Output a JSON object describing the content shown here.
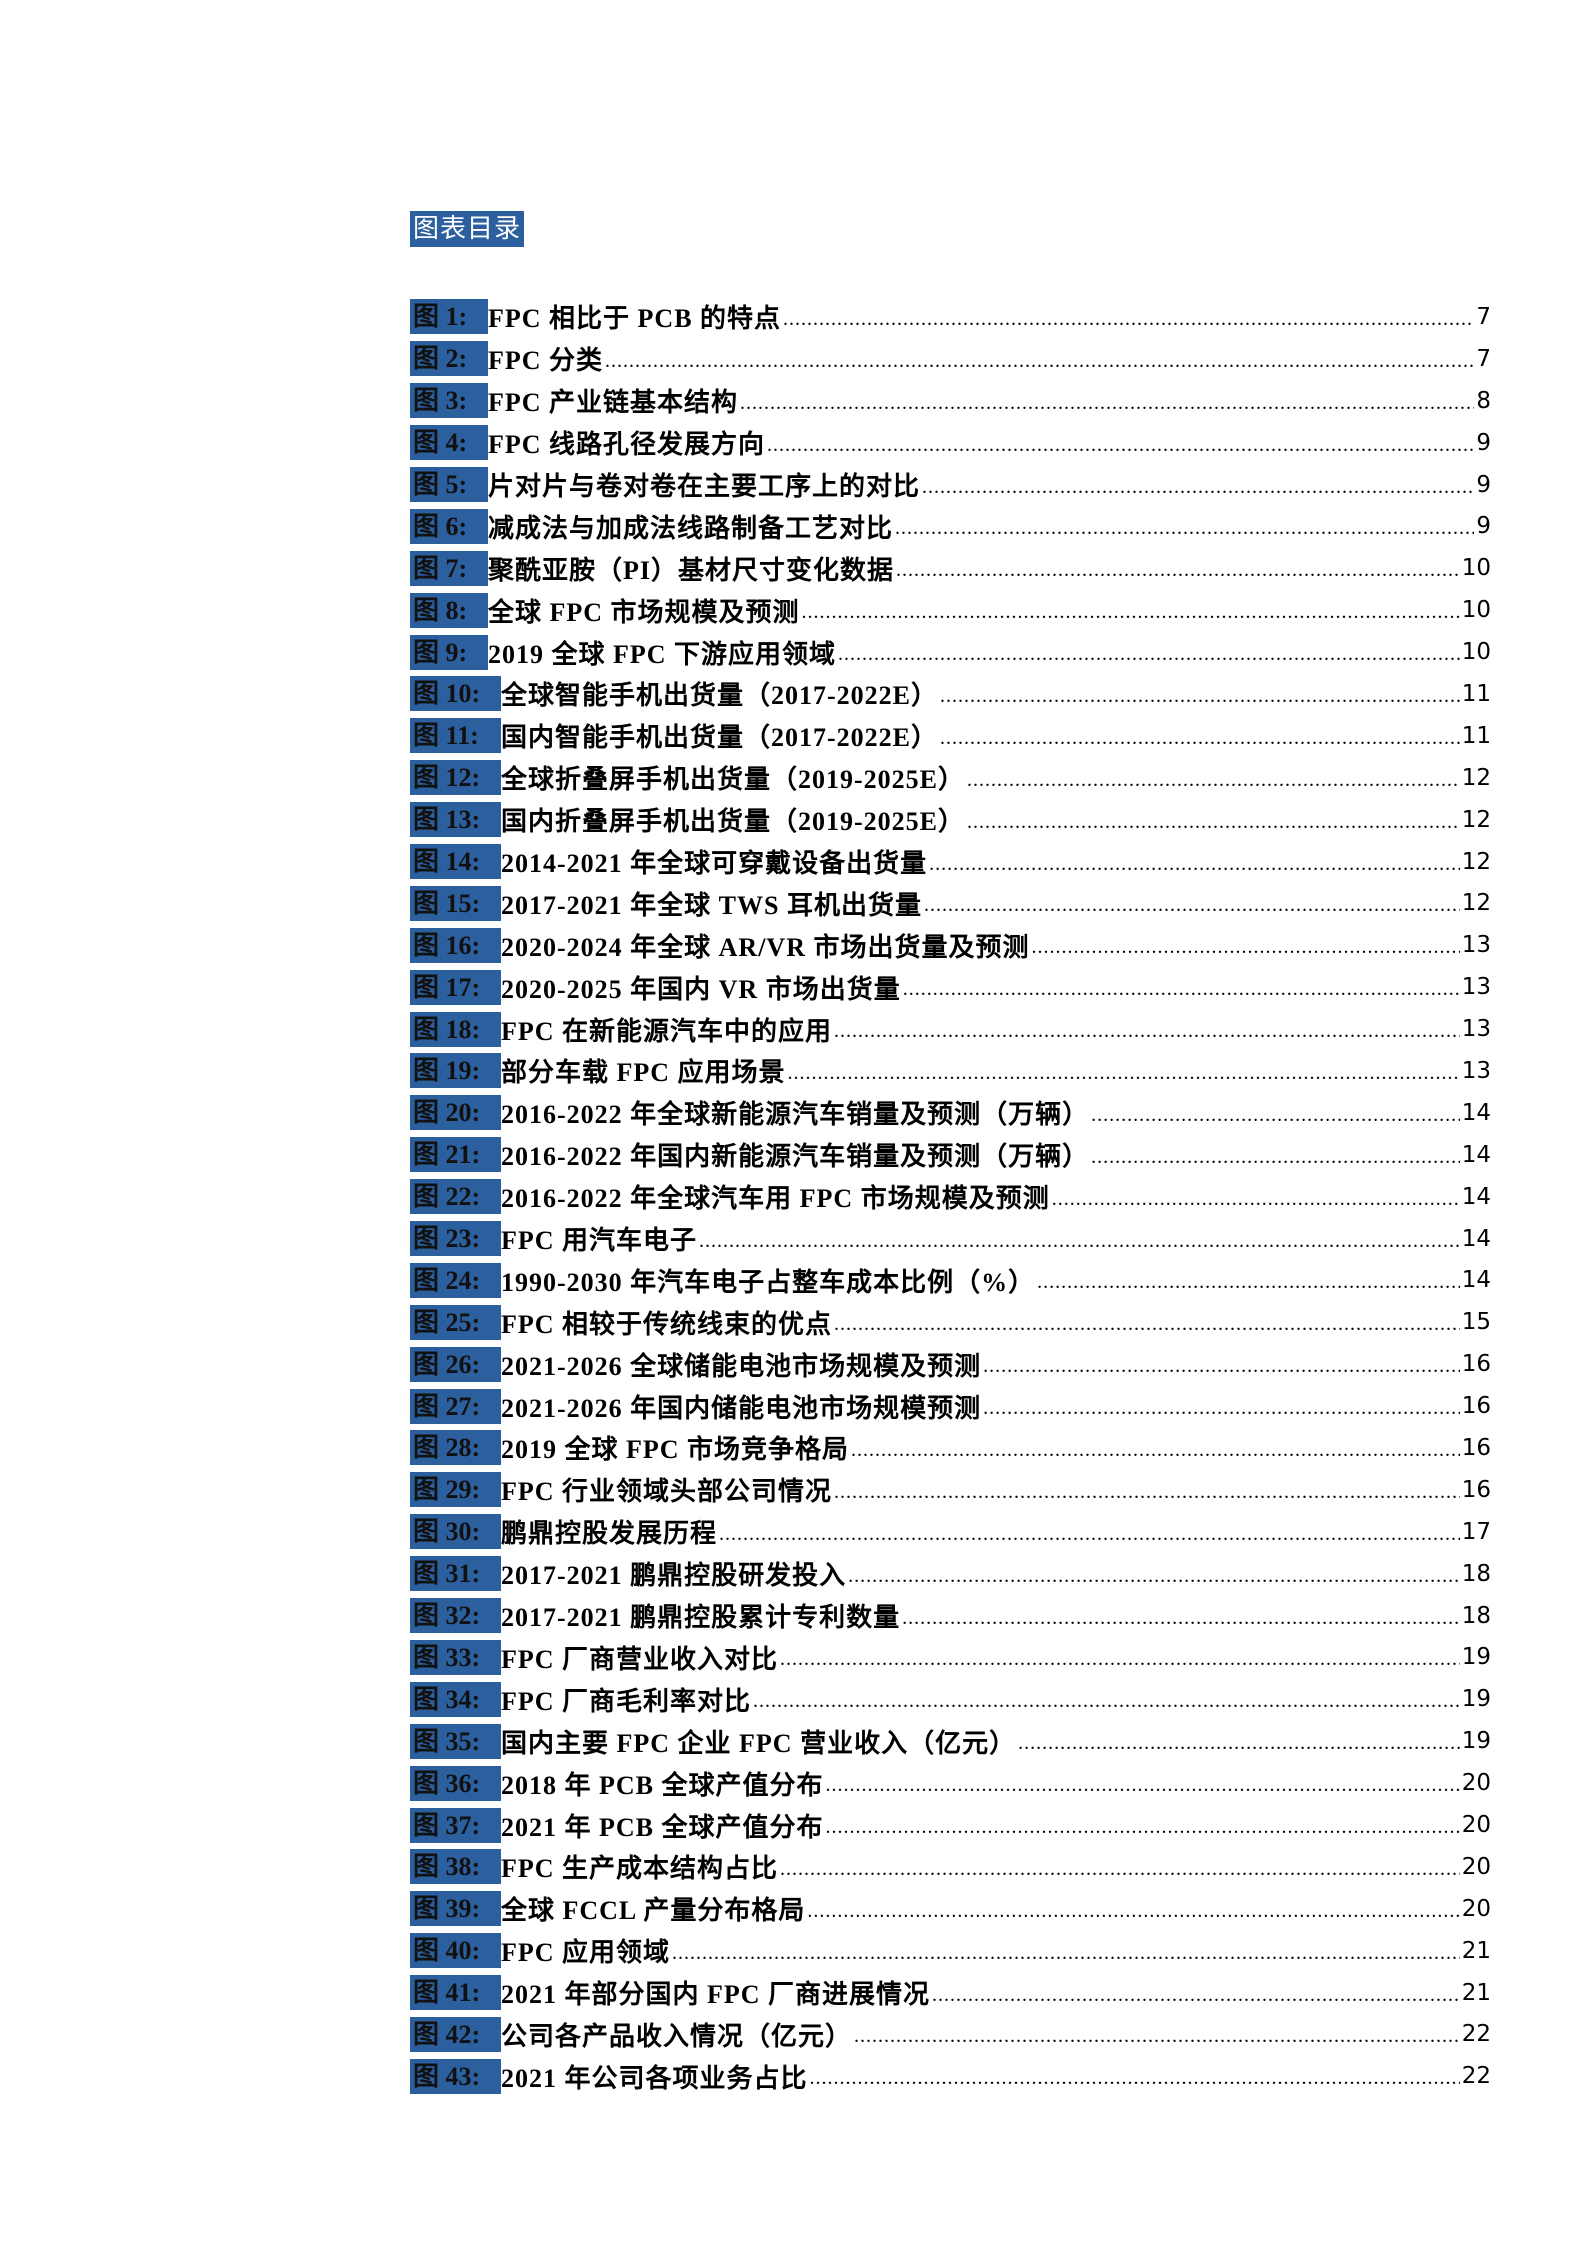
{
  "title": "图表目录",
  "leader": "....................................................................................................................................................................................................",
  "entries": [
    {
      "label": "图 1:",
      "text": "FPC 相比于 PCB 的特点",
      "page": "7"
    },
    {
      "label": "图 2:",
      "text": "FPC 分类",
      "page": "7"
    },
    {
      "label": "图 3:",
      "text": "FPC 产业链基本结构",
      "page": "8"
    },
    {
      "label": "图 4:",
      "text": "FPC 线路孔径发展方向",
      "page": "9"
    },
    {
      "label": "图 5:",
      "text": "片对片与卷对卷在主要工序上的对比",
      "page": "9"
    },
    {
      "label": "图 6:",
      "text": "减成法与加成法线路制备工艺对比",
      "page": "9"
    },
    {
      "label": "图 7:",
      "text": "聚酰亚胺（PI）基材尺寸变化数据",
      "page": "10"
    },
    {
      "label": "图 8:",
      "text": "全球 FPC 市场规模及预测",
      "page": "10"
    },
    {
      "label": "图 9:",
      "text": "2019 全球 FPC 下游应用领域",
      "page": "10"
    },
    {
      "label": "图 10:",
      "text": "全球智能手机出货量（2017-2022E）",
      "page": "11"
    },
    {
      "label": "图 11:",
      "text": "国内智能手机出货量（2017-2022E）",
      "page": "11"
    },
    {
      "label": "图 12:",
      "text": "全球折叠屏手机出货量（2019-2025E）",
      "page": "12"
    },
    {
      "label": "图 13:",
      "text": "国内折叠屏手机出货量（2019-2025E）",
      "page": "12"
    },
    {
      "label": "图 14:",
      "text": "2014-2021 年全球可穿戴设备出货量",
      "page": "12"
    },
    {
      "label": "图 15:",
      "text": "2017-2021 年全球 TWS 耳机出货量",
      "page": "12"
    },
    {
      "label": "图 16:",
      "text": "2020-2024 年全球 AR/VR 市场出货量及预测",
      "page": "13"
    },
    {
      "label": "图 17:",
      "text": "2020-2025 年国内 VR 市场出货量",
      "page": "13"
    },
    {
      "label": "图 18:",
      "text": "FPC 在新能源汽车中的应用",
      "page": "13"
    },
    {
      "label": "图 19:",
      "text": "部分车载 FPC 应用场景",
      "page": "13"
    },
    {
      "label": "图 20:",
      "text": "2016-2022 年全球新能源汽车销量及预测（万辆）",
      "page": "14"
    },
    {
      "label": "图 21:",
      "text": "2016-2022 年国内新能源汽车销量及预测（万辆）",
      "page": "14"
    },
    {
      "label": "图 22:",
      "text": "2016-2022 年全球汽车用 FPC 市场规模及预测",
      "page": "14"
    },
    {
      "label": "图 23:",
      "text": "FPC 用汽车电子",
      "page": "14"
    },
    {
      "label": "图 24:",
      "text": "1990-2030 年汽车电子占整车成本比例（%）",
      "page": "14"
    },
    {
      "label": "图 25:",
      "text": "FPC 相较于传统线束的优点",
      "page": "15"
    },
    {
      "label": "图 26:",
      "text": "2021-2026 全球储能电池市场规模及预测",
      "page": "16"
    },
    {
      "label": "图 27:",
      "text": "2021-2026 年国内储能电池市场规模预测",
      "page": "16"
    },
    {
      "label": "图 28:",
      "text": "2019 全球 FPC 市场竞争格局",
      "page": "16"
    },
    {
      "label": "图 29:",
      "text": "FPC 行业领域头部公司情况",
      "page": "16"
    },
    {
      "label": "图 30:",
      "text": "鹏鼎控股发展历程",
      "page": "17"
    },
    {
      "label": "图 31:",
      "text": "2017-2021 鹏鼎控股研发投入",
      "page": "18"
    },
    {
      "label": "图 32:",
      "text": "2017-2021 鹏鼎控股累计专利数量",
      "page": "18"
    },
    {
      "label": "图 33:",
      "text": "FPC 厂商营业收入对比",
      "page": "19"
    },
    {
      "label": "图 34:",
      "text": "FPC 厂商毛利率对比",
      "page": "19"
    },
    {
      "label": "图 35:",
      "text": "国内主要 FPC 企业 FPC 营业收入（亿元）",
      "page": "19"
    },
    {
      "label": "图 36:",
      "text": "2018 年 PCB 全球产值分布",
      "page": "20"
    },
    {
      "label": "图 37:",
      "text": "2021 年 PCB 全球产值分布",
      "page": "20"
    },
    {
      "label": "图 38:",
      "text": "FPC 生产成本结构占比",
      "page": "20"
    },
    {
      "label": "图 39:",
      "text": "全球 FCCL 产量分布格局",
      "page": "20"
    },
    {
      "label": "图 40:",
      "text": "FPC 应用领域",
      "page": "21"
    },
    {
      "label": "图 41:",
      "text": "2021 年部分国内 FPC 厂商进展情况",
      "page": "21"
    },
    {
      "label": "图 42:",
      "text": "公司各产品收入情况（亿元）",
      "page": "22"
    },
    {
      "label": "图 43:",
      "text": "2021 年公司各项业务占比",
      "page": "22"
    }
  ]
}
